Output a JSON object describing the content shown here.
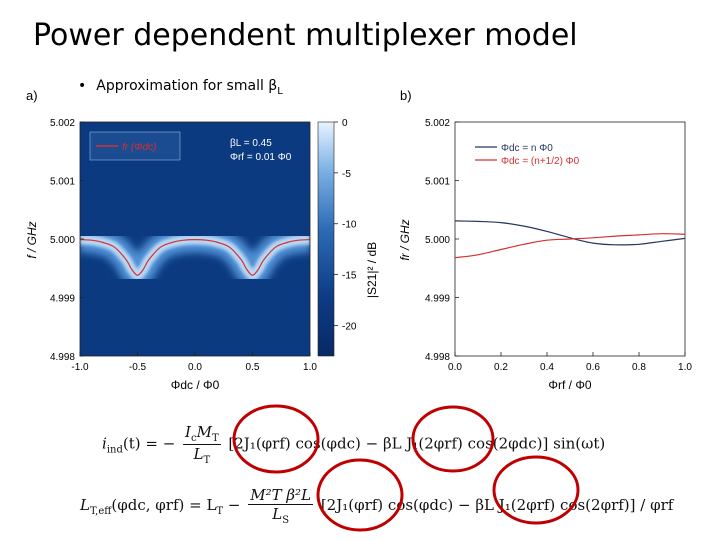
{
  "slide": {
    "title": "Power dependent multiplexer model",
    "bullet": "Approximation for small β",
    "bullet_sub": "L"
  },
  "chart_data": [
    {
      "type": "heatmap",
      "panel": "a)",
      "xlabel": "Φdc / Φ0",
      "ylabel": "f / GHz",
      "xlim": [
        -1.0,
        1.0
      ],
      "ylim": [
        4.998,
        5.002
      ],
      "xticks": [
        "-1.0",
        "-0.5",
        "0.0",
        "0.5",
        "1.0"
      ],
      "yticks": [
        "5.002",
        "5.001",
        "5.000",
        "4.999",
        "4.998"
      ],
      "colorbar": {
        "label": "|S21|² / dB",
        "range": [
          -23,
          0
        ],
        "ticks": [
          "0",
          "-5",
          "-10",
          "-15",
          "-20"
        ]
      },
      "legend": "fr (Φdc)",
      "params": [
        "βL = 0.45",
        "Φrf = 0.01 Φ0"
      ],
      "series": [
        {
          "name": "fr (Φdc)",
          "color": "#d43030",
          "x": [
            -1.0,
            -0.9,
            -0.8,
            -0.7,
            -0.6,
            -0.55,
            -0.5,
            -0.45,
            -0.4,
            -0.3,
            -0.2,
            -0.1,
            0.0,
            0.1,
            0.2,
            0.3,
            0.4,
            0.45,
            0.5,
            0.55,
            0.6,
            0.7,
            0.8,
            0.9,
            1.0
          ],
          "y": [
            4.99999,
            4.99998,
            4.99994,
            4.99986,
            4.99965,
            4.99948,
            4.99938,
            4.99948,
            4.99965,
            4.99986,
            4.99994,
            4.99998,
            4.99999,
            4.99998,
            4.99994,
            4.99986,
            4.99965,
            4.99948,
            4.99938,
            4.99948,
            4.99965,
            4.99986,
            4.99994,
            4.99998,
            4.99999
          ]
        }
      ]
    },
    {
      "type": "line",
      "panel": "b)",
      "xlabel": "Φrf / Φ0",
      "ylabel": "fr / GHz",
      "xlim": [
        0.0,
        1.0
      ],
      "ylim": [
        4.998,
        5.002
      ],
      "xticks": [
        "0.0",
        "0.2",
        "0.4",
        "0.6",
        "0.8",
        "1.0"
      ],
      "yticks": [
        "5.002",
        "5.001",
        "5.000",
        "4.999",
        "4.998"
      ],
      "legend_position": "top-right",
      "series": [
        {
          "name": "Φdc = n Φ0",
          "color": "#2a3560",
          "x": [
            0.0,
            0.1,
            0.2,
            0.3,
            0.4,
            0.5,
            0.6,
            0.7,
            0.8,
            0.9,
            1.0
          ],
          "y": [
            5.00031,
            5.0003,
            5.00028,
            5.00022,
            5.00013,
            5.00002,
            4.99993,
            4.9999,
            4.99991,
            4.99996,
            5.00001
          ]
        },
        {
          "name": "Φdc = (n+1/2) Φ0",
          "color": "#d43030",
          "x": [
            0.0,
            0.1,
            0.2,
            0.3,
            0.4,
            0.5,
            0.6,
            0.7,
            0.8,
            0.9,
            1.0
          ],
          "y": [
            4.99968,
            4.99973,
            4.99982,
            4.99991,
            4.99998,
            5.0,
            5.00002,
            5.00005,
            5.00007,
            5.00009,
            5.00008
          ]
        }
      ]
    }
  ],
  "equations": {
    "eq1_lhs": "i",
    "eq1_lhs_sub": "ind",
    "eq1_rest": "(t) = −",
    "eq1_frac_num": "I",
    "eq1_frac_num_sub": "c",
    "eq1_frac_num_m": "M",
    "eq1_frac_num_m_sub": "T",
    "eq1_frac_den": "L",
    "eq1_frac_den_sub": "T",
    "eq1_body": "[2J₁(φrf) cos(φdc) − βL J₁(2φrf) cos(2φdc)] sin(ωt)",
    "eq2_lhs": "L",
    "eq2_lhs_sub": "T,eff",
    "eq2_args": "(φdc, φrf) = L",
    "eq2_args_sub": "T",
    "eq2_minus": "−",
    "eq2_frac_num": "M²T β²L",
    "eq2_frac_den": "L",
    "eq2_frac_den_sub": "S",
    "eq2_body": "[2J₁(φrf) cos(φdc) − βL J₁(2φrf) cos(2φrf)] / φrf"
  },
  "annotations": {
    "circle_color": "#c00000"
  }
}
